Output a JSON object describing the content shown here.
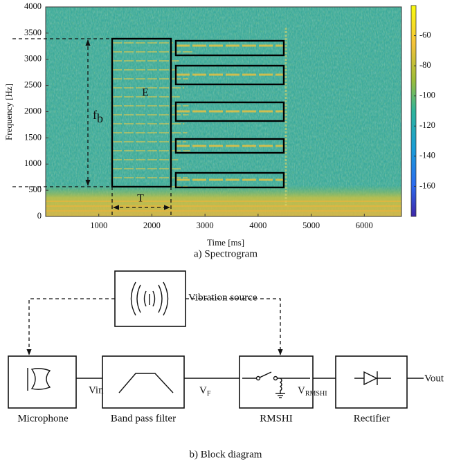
{
  "spectrogram": {
    "xlabel": "Time [ms]",
    "ylabel": "Frequency [Hz]",
    "xlim": [
      0,
      6700
    ],
    "xticks": [
      1000,
      2000,
      3000,
      4000,
      5000,
      6000
    ],
    "ylim": [
      0,
      4000
    ],
    "yticks": [
      0,
      500,
      1000,
      1500,
      2000,
      2500,
      3000,
      3500,
      4000
    ],
    "colorbar": {
      "lim": [
        -180,
        -40
      ],
      "ticks": [
        -60,
        -80,
        -100,
        -120,
        -140,
        -160
      ]
    },
    "annotations": {
      "energy": "E",
      "bandwidth": "f",
      "bandwidth_subscript": "b",
      "duration": "T"
    },
    "caption": "a) Spectrogram"
  },
  "block_diagram": {
    "source": "Vibration source",
    "blocks": [
      "Microphone",
      "Band pass filter",
      "RMSHI",
      "Rectifier"
    ],
    "signals": [
      {
        "text": "Vin"
      },
      {
        "text": "V",
        "subscript": "F"
      },
      {
        "text": "V",
        "subscript": "RMSHI"
      },
      {
        "text": "Vout"
      }
    ],
    "caption": "b) Block diagram"
  }
}
